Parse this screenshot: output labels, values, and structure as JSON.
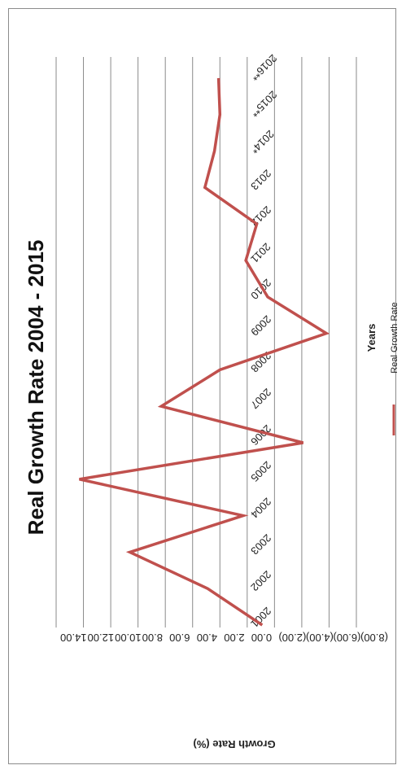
{
  "chart_data": {
    "type": "line",
    "title": "Real Growth Rate 2004 - 2015",
    "xlabel": "Years",
    "ylabel": "Growth Rate (%)",
    "categories": [
      "2001",
      "2002",
      "2003",
      "2004",
      "2005",
      "2006",
      "2007",
      "2008",
      "2009",
      "2010",
      "2011",
      "2012",
      "2013",
      "2014*",
      "2015**",
      "2016**"
    ],
    "series": [
      {
        "name": "Real Growth Rate",
        "color": "#c0504d",
        "values": [
          -1.1,
          2.9,
          8.6,
          0.3,
          12.3,
          -4.1,
          6.3,
          2.0,
          -5.8,
          -1.5,
          0.1,
          -0.7,
          3.1,
          2.4,
          2.0,
          2.1
        ]
      }
    ],
    "ylim": [
      -8,
      14
    ],
    "yticks": [
      14,
      12,
      10,
      8,
      6,
      4,
      2,
      0,
      -2,
      -4,
      -6,
      -8
    ],
    "ytick_labels": [
      "14.00",
      "12.00",
      "10.00",
      "8.00",
      "6.00",
      "4.00",
      "2.00",
      "0.00",
      "(2.00)",
      "(4.00)",
      "(6.00)",
      "(8.00)"
    ],
    "grid": true,
    "legend_position": "bottom",
    "orientation": "rotated 90 degrees clockwise"
  }
}
